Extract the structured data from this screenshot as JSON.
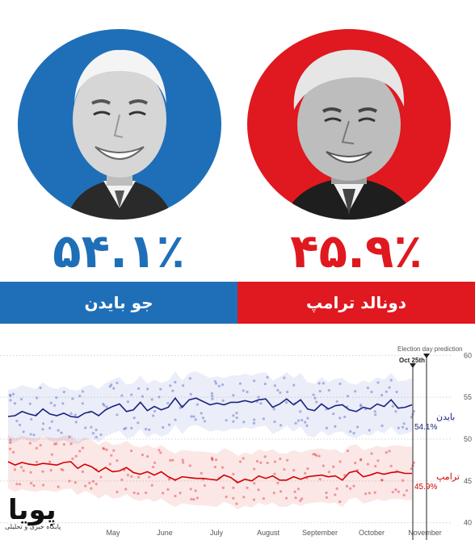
{
  "candidates": {
    "left": {
      "percent": "۵۴.۱٪",
      "name": "جو بایدن",
      "color": "#1f6fb8"
    },
    "right": {
      "percent": "۴۵.۹٪",
      "name": "دونالد ترامپ",
      "color": "#e0181f"
    }
  },
  "logo": {
    "word": "پویا",
    "subtitle": "پایگاه خبری و تحلیلی"
  },
  "chart_data": {
    "type": "line",
    "annotation_title": "Election day prediction",
    "marker_label": "Oct 25th",
    "x_labels": [
      "May",
      "June",
      "July",
      "August",
      "September",
      "October",
      "November"
    ],
    "y_ticks": [
      40,
      45,
      50,
      55,
      60
    ],
    "ylim": [
      39,
      61
    ],
    "grid": true,
    "series": [
      {
        "name": "بایدن",
        "final_label": "54.1%",
        "color": "#1a237e",
        "values": [
          52.7,
          52.8,
          53.3,
          53.0,
          52.8,
          53.6,
          53.0,
          52.8,
          53.1,
          52.7,
          52.6,
          53.1,
          53.3,
          52.8,
          53.5,
          53.9,
          54.2,
          53.3,
          53.5,
          54.4,
          53.4,
          53.9,
          53.5,
          53.8,
          54.9,
          53.8,
          54.7,
          54.9,
          54.5,
          54.1,
          54.3,
          54.1,
          54.4,
          54.4,
          54.6,
          54.4,
          54.7,
          54.8,
          53.8,
          54.2,
          54.8,
          54.1,
          54.7,
          53.6,
          53.4,
          54.2,
          53.6,
          54.0,
          54.1,
          53.5,
          53.3,
          53.8,
          53.6,
          54.2,
          53.9,
          54.7,
          53.7,
          53.8,
          54.1
        ]
      },
      {
        "name": "ترامپ",
        "final_label": "45.9%",
        "color": "#d50000",
        "values": [
          47.3,
          46.9,
          47.2,
          47.0,
          46.9,
          47.1,
          47.0,
          46.9,
          47.2,
          47.3,
          46.5,
          47.0,
          46.7,
          46.1,
          46.6,
          46.1,
          46.2,
          46.6,
          46.0,
          45.8,
          46.1,
          45.7,
          46.1,
          45.5,
          45.1,
          45.5,
          45.4,
          45.3,
          45.3,
          45.2,
          45.1,
          45.7,
          45.4,
          44.8,
          45.2,
          45.0,
          45.6,
          45.3,
          45.6,
          45.1,
          45.1,
          45.5,
          45.2,
          45.5,
          45.6,
          45.7,
          45.5,
          45.6,
          45.1,
          46.0,
          46.2,
          45.5,
          45.7,
          46.0,
          45.8,
          46.0,
          46.1,
          45.9,
          45.9
        ]
      }
    ]
  }
}
